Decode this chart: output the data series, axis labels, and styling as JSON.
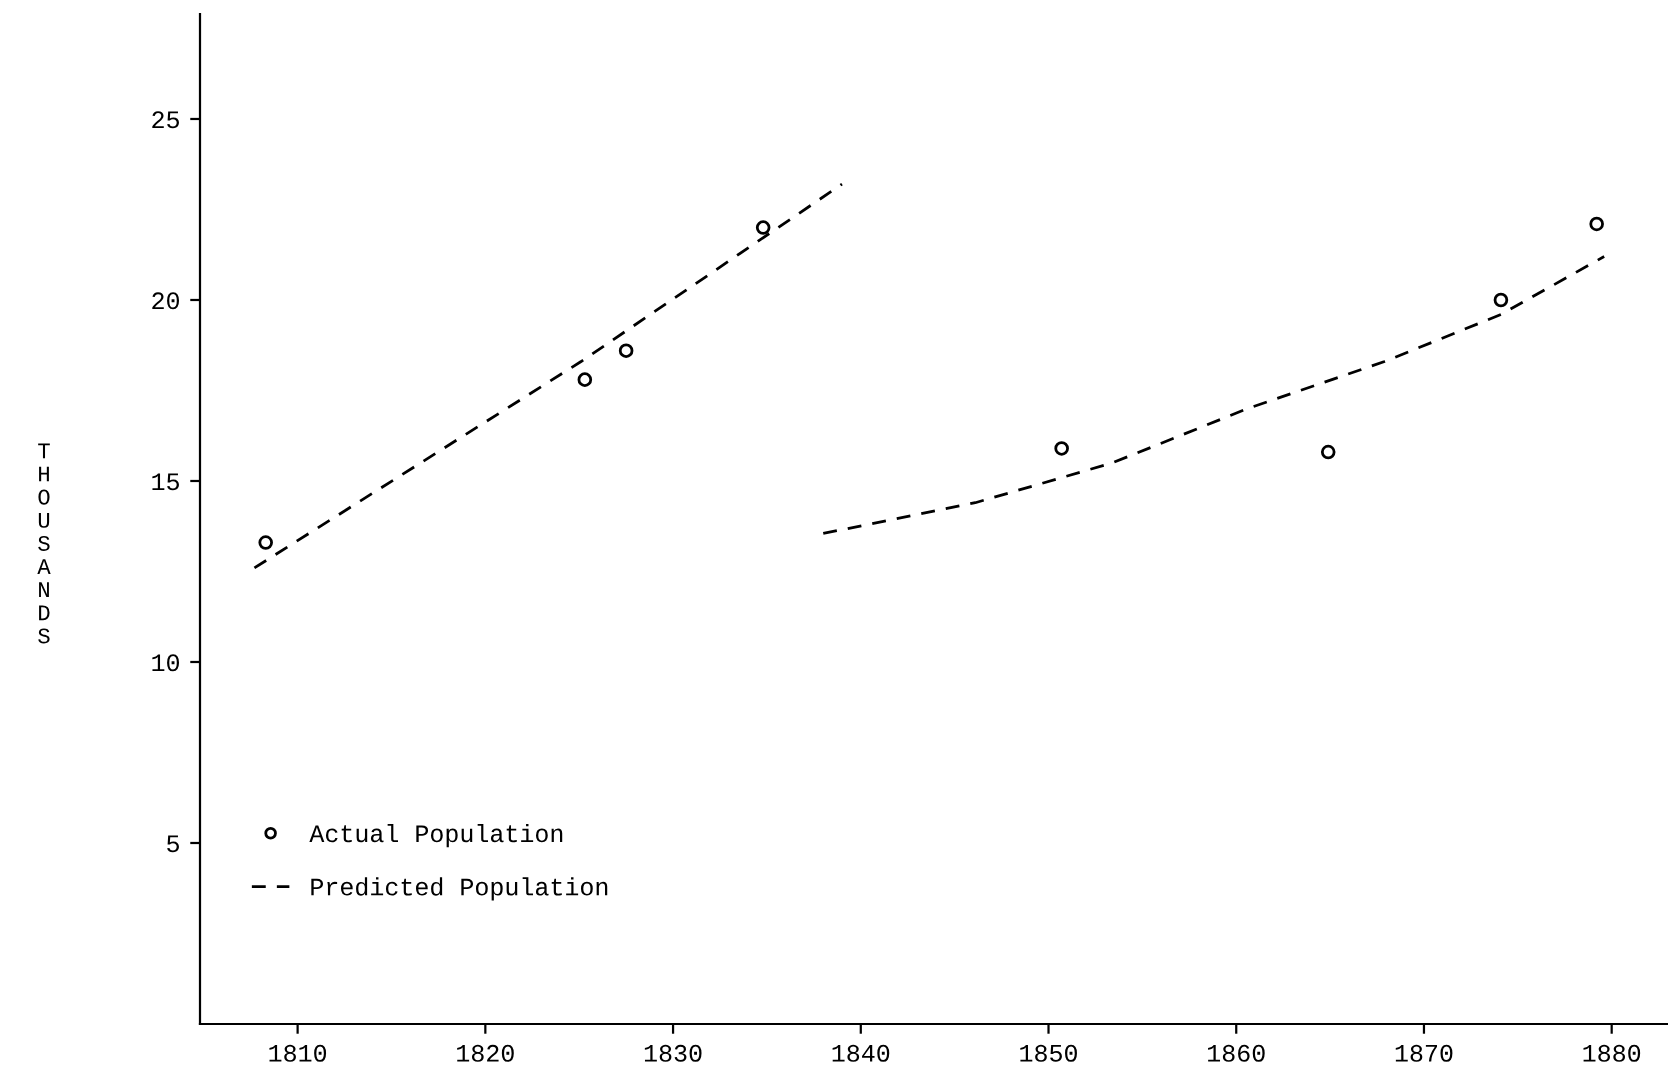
{
  "chart_data": {
    "type": "scatter",
    "ylabel": "THOUSANDS",
    "xlim": [
      1804.8,
      1883
    ],
    "xticks": [
      1810,
      1820,
      1830,
      1840,
      1850,
      1860,
      1870,
      1880
    ],
    "ylim": [
      0,
      27.9
    ],
    "yticks": [
      5,
      10,
      15,
      20,
      25
    ],
    "grid": false,
    "legend": "bottom left",
    "series": [
      {
        "name": "Actual Population",
        "marker": "circle",
        "color": "#000000",
        "x": [
          1808.3,
          1825.3,
          1827.5,
          1834.8,
          1850.7,
          1864.9,
          1874.1,
          1879.2
        ],
        "values": [
          13.3,
          17.8,
          18.6,
          22.0,
          15.9,
          15.8,
          20.0,
          22.1
        ]
      },
      {
        "name": "Predicted Population",
        "type": "line",
        "line_style": "dashed",
        "color": "#000000",
        "x": [
          1807.7,
          1825.1,
          1839.0,
          null,
          1838.0,
          1846.1,
          1853.4,
          1860.6,
          1867.9,
          1874.1,
          1879.6
        ],
        "values": [
          12.6,
          18.3,
          23.2,
          null,
          13.55,
          14.4,
          15.5,
          17.0,
          18.3,
          19.6,
          21.2
        ]
      }
    ]
  }
}
